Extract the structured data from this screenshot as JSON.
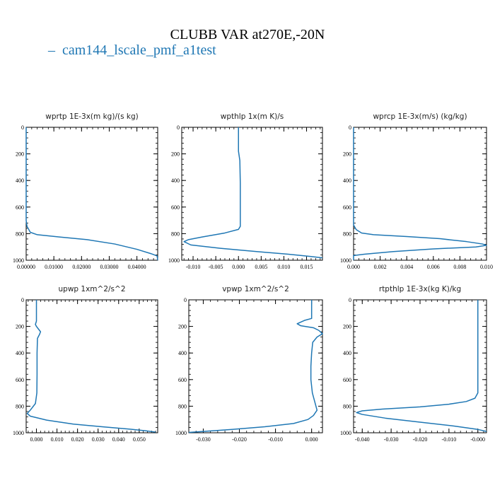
{
  "figure": {
    "title": "CLUBB VAR at270E,-20N",
    "legend": [
      {
        "name": "cam144_lscale_pmf_a1test",
        "color": "#1f77b4",
        "glyph": "–"
      }
    ]
  },
  "chart_data": [
    {
      "type": "line",
      "title": "wprtp  1E-3x(m kg)/(s kg)",
      "xlim": [
        0,
        0.0475
      ],
      "ylim": [
        1000,
        0
      ],
      "xticks": [
        0,
        0.01,
        0.02,
        0.03,
        0.04
      ],
      "xticklabels": [
        "0.00000",
        "0.01000",
        "0.02000",
        "0.03000",
        "0.04000"
      ],
      "yticks": [
        0,
        200,
        400,
        600,
        800,
        1000
      ],
      "yticklabels": [
        "0",
        "200",
        "400",
        "600",
        "800",
        "1000"
      ],
      "series": [
        {
          "color": "#1f77b4",
          "points": [
            [
              0,
              0
            ],
            [
              0,
              700
            ],
            [
              0.0003,
              745
            ],
            [
              0.0015,
              790
            ],
            [
              0.004,
              808
            ],
            [
              0.012,
              825
            ],
            [
              0.022,
              845
            ],
            [
              0.032,
              878
            ],
            [
              0.04,
              918
            ],
            [
              0.045,
              950
            ],
            [
              0.0473,
              968
            ],
            [
              0.0475,
              1000
            ]
          ]
        }
      ]
    },
    {
      "type": "line",
      "title": "wpthlp  1x(m K)/s",
      "xlim": [
        -0.0125,
        0.0185
      ],
      "ylim": [
        1000,
        0
      ],
      "xticks": [
        -0.01,
        -0.005,
        0,
        0.005,
        0.01,
        0.015
      ],
      "xticklabels": [
        "-0.010",
        "-0.005",
        "0.000",
        "0.005",
        "0.010",
        "0.015"
      ],
      "yticks": [
        0,
        200,
        400,
        600,
        800,
        1000
      ],
      "yticklabels": [
        "0",
        "200",
        "400",
        "600",
        "800",
        "1000"
      ],
      "series": [
        {
          "color": "#1f77b4",
          "points": [
            [
              0,
              0
            ],
            [
              0,
              180
            ],
            [
              0.0003,
              250
            ],
            [
              0.0004,
              420
            ],
            [
              0.0004,
              600
            ],
            [
              0.0004,
              745
            ],
            [
              0,
              768
            ],
            [
              -0.003,
              795
            ],
            [
              -0.008,
              825
            ],
            [
              -0.011,
              845
            ],
            [
              -0.012,
              860
            ],
            [
              -0.0105,
              885
            ],
            [
              -0.004,
              910
            ],
            [
              0.004,
              935
            ],
            [
              0.011,
              955
            ],
            [
              0.016,
              972
            ],
            [
              0.0185,
              982
            ]
          ]
        }
      ]
    },
    {
      "type": "line",
      "title": "wprcp  1E-3x(m/s) (kg/kg)",
      "xlim": [
        0,
        0.01
      ],
      "ylim": [
        1000,
        0
      ],
      "xticks": [
        0,
        0.002,
        0.004,
        0.006,
        0.008,
        0.01
      ],
      "xticklabels": [
        "0.000",
        "0.002",
        "0.004",
        "0.006",
        "0.008",
        "0.010"
      ],
      "yticks": [
        0,
        200,
        400,
        600,
        800,
        1000
      ],
      "yticklabels": [
        "0",
        "200",
        "400",
        "600",
        "800",
        "1000"
      ],
      "series": [
        {
          "color": "#1f77b4",
          "points": [
            [
              0,
              0
            ],
            [
              0,
              735
            ],
            [
              0.0002,
              770
            ],
            [
              0.0006,
              795
            ],
            [
              0.0015,
              808
            ],
            [
              0.004,
              822
            ],
            [
              0.0065,
              838
            ],
            [
              0.0085,
              860
            ],
            [
              0.0097,
              878
            ],
            [
              0.01,
              888
            ],
            [
              0.0092,
              900
            ],
            [
              0.006,
              915
            ],
            [
              0.003,
              935
            ],
            [
              0.0008,
              955
            ],
            [
              0,
              965
            ],
            [
              0,
              1000
            ]
          ]
        }
      ]
    },
    {
      "type": "line",
      "title": "upwp  1xm^2/s^2",
      "xlim": [
        -0.005,
        0.059
      ],
      "ylim": [
        1000,
        0
      ],
      "xticks": [
        0,
        0.01,
        0.02,
        0.03,
        0.04,
        0.05
      ],
      "xticklabels": [
        "0.000",
        "0.010",
        "0.020",
        "0.030",
        "0.040",
        "0.050"
      ],
      "yticks": [
        0,
        200,
        400,
        600,
        800,
        1000
      ],
      "yticklabels": [
        "0",
        "200",
        "400",
        "600",
        "800",
        "1000"
      ],
      "series": [
        {
          "color": "#1f77b4",
          "points": [
            [
              0,
              0
            ],
            [
              0,
              160
            ],
            [
              -0.0005,
              185
            ],
            [
              0,
              200
            ],
            [
              0.001,
              220
            ],
            [
              0.002,
              240
            ],
            [
              0.0015,
              260
            ],
            [
              0.0005,
              290
            ],
            [
              0.0003,
              400
            ],
            [
              0.0003,
              560
            ],
            [
              0.0002,
              700
            ],
            [
              -0.0005,
              780
            ],
            [
              -0.003,
              830
            ],
            [
              -0.0045,
              855
            ],
            [
              -0.003,
              875
            ],
            [
              0.005,
              905
            ],
            [
              0.018,
              935
            ],
            [
              0.032,
              955
            ],
            [
              0.045,
              972
            ],
            [
              0.053,
              985
            ],
            [
              0.058,
              995
            ]
          ]
        }
      ]
    },
    {
      "type": "line",
      "title": "vpwp  1xm^2/s^2",
      "xlim": [
        -0.034,
        0.003
      ],
      "ylim": [
        1000,
        0
      ],
      "xticks": [
        -0.03,
        -0.02,
        -0.01,
        0
      ],
      "xticklabels": [
        "-0.030",
        "-0.020",
        "-0.010",
        "0.000"
      ],
      "yticks": [
        0,
        200,
        400,
        600,
        800,
        1000
      ],
      "yticklabels": [
        "0",
        "200",
        "400",
        "600",
        "800",
        "1000"
      ],
      "series": [
        {
          "color": "#1f77b4",
          "points": [
            [
              0,
              0
            ],
            [
              0,
              140
            ],
            [
              -0.002,
              155
            ],
            [
              -0.004,
              180
            ],
            [
              -0.003,
              195
            ],
            [
              0.0005,
              210
            ],
            [
              0.002,
              230
            ],
            [
              0.003,
              255
            ],
            [
              0.0015,
              280
            ],
            [
              0.0003,
              320
            ],
            [
              0,
              400
            ],
            [
              -0.0002,
              500
            ],
            [
              -0.0002,
              600
            ],
            [
              0.0002,
              700
            ],
            [
              0.001,
              780
            ],
            [
              0.0015,
              830
            ],
            [
              0.0005,
              870
            ],
            [
              -0.001,
              900
            ],
            [
              -0.005,
              930
            ],
            [
              -0.013,
              955
            ],
            [
              -0.022,
              975
            ],
            [
              -0.03,
              990
            ],
            [
              -0.034,
              997
            ]
          ]
        }
      ]
    },
    {
      "type": "line",
      "title": "rtpthlp  1E-3x(kg K)/kg",
      "xlim": [
        -0.043,
        0.003
      ],
      "ylim": [
        1000,
        0
      ],
      "xticks": [
        -0.04,
        -0.03,
        -0.02,
        -0.01,
        0
      ],
      "xticklabels": [
        "-0.040",
        "-0.030",
        "-0.020",
        "-0.010",
        "-0.000"
      ],
      "yticks": [
        0,
        200,
        400,
        600,
        800,
        1000
      ],
      "yticklabels": [
        "0",
        "200",
        "400",
        "600",
        "800",
        "1000"
      ],
      "series": [
        {
          "color": "#1f77b4",
          "points": [
            [
              0,
              0
            ],
            [
              0,
              700
            ],
            [
              -0.001,
              740
            ],
            [
              -0.004,
              765
            ],
            [
              -0.01,
              785
            ],
            [
              -0.02,
              805
            ],
            [
              -0.033,
              822
            ],
            [
              -0.04,
              835
            ],
            [
              -0.042,
              848
            ],
            [
              -0.04,
              862
            ],
            [
              -0.032,
              890
            ],
            [
              -0.02,
              920
            ],
            [
              -0.008,
              950
            ],
            [
              0,
              975
            ],
            [
              0.003,
              990
            ]
          ]
        }
      ]
    }
  ]
}
